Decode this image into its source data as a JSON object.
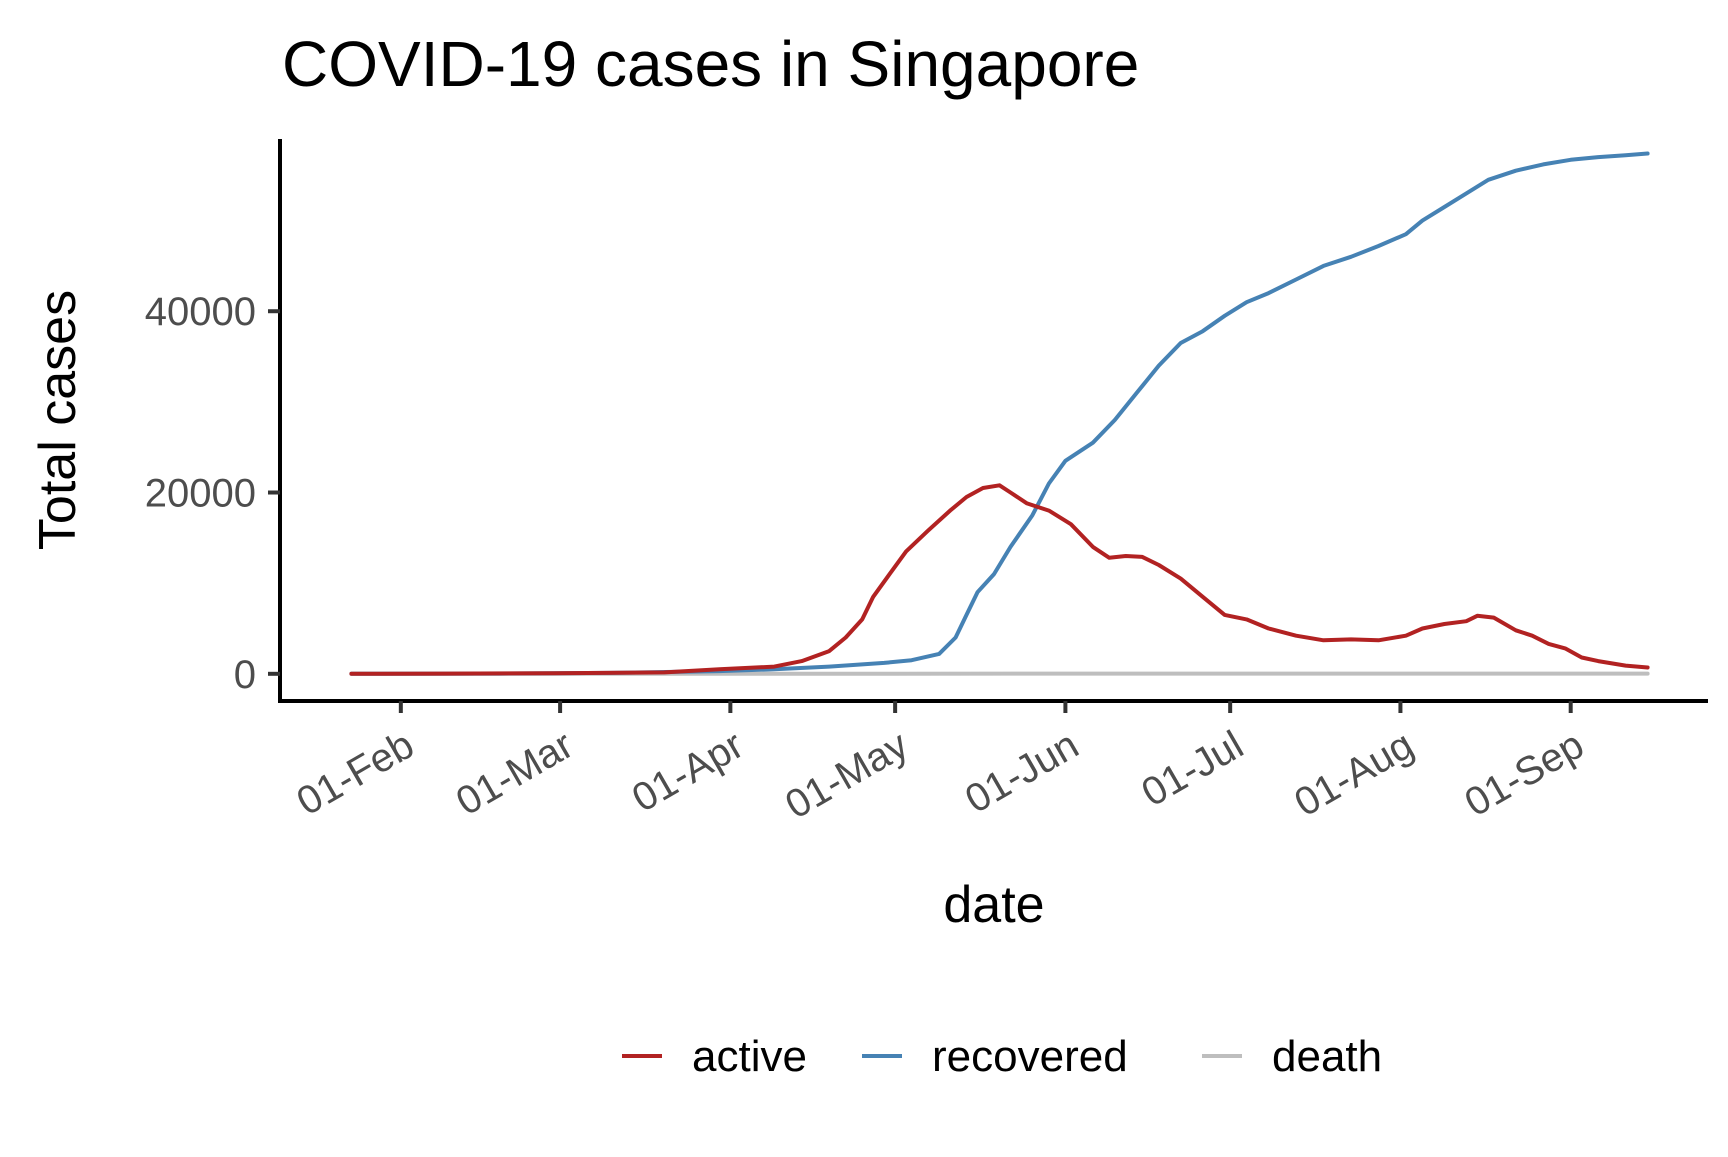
{
  "chart_data": {
    "type": "line",
    "title": "COVID-19 cases in Singapore",
    "xlabel": "date",
    "ylabel": "Total cases",
    "x_start_day": 23,
    "x_end_day": 259,
    "xlim": [
      10,
      270
    ],
    "ylim": [
      -3000,
      59000
    ],
    "x_ticks": [
      {
        "day": 32,
        "label": "01-Feb"
      },
      {
        "day": 61,
        "label": "01-Mar"
      },
      {
        "day": 92,
        "label": "01-Apr"
      },
      {
        "day": 122,
        "label": "01-May"
      },
      {
        "day": 153,
        "label": "01-Jun"
      },
      {
        "day": 183,
        "label": "01-Jul"
      },
      {
        "day": 214,
        "label": "01-Aug"
      },
      {
        "day": 245,
        "label": "01-Sep"
      }
    ],
    "y_ticks": [
      {
        "value": 0,
        "label": "0"
      },
      {
        "value": 20000,
        "label": "20000"
      },
      {
        "value": 40000,
        "label": "40000"
      }
    ],
    "grid": false,
    "legend_position": "bottom",
    "series": [
      {
        "name": "active",
        "label": "active",
        "color": "#B22222",
        "points": [
          [
            23,
            0
          ],
          [
            40,
            20
          ],
          [
            60,
            60
          ],
          [
            80,
            150
          ],
          [
            90,
            500
          ],
          [
            100,
            800
          ],
          [
            105,
            1400
          ],
          [
            110,
            2500
          ],
          [
            113,
            4000
          ],
          [
            116,
            6000
          ],
          [
            118,
            8500
          ],
          [
            121,
            11000
          ],
          [
            124,
            13500
          ],
          [
            128,
            15800
          ],
          [
            132,
            18000
          ],
          [
            135,
            19500
          ],
          [
            138,
            20500
          ],
          [
            141,
            20800
          ],
          [
            143,
            20000
          ],
          [
            146,
            18800
          ],
          [
            150,
            18000
          ],
          [
            154,
            16500
          ],
          [
            158,
            14000
          ],
          [
            161,
            12800
          ],
          [
            164,
            13000
          ],
          [
            167,
            12900
          ],
          [
            170,
            12000
          ],
          [
            174,
            10500
          ],
          [
            178,
            8500
          ],
          [
            182,
            6500
          ],
          [
            186,
            6000
          ],
          [
            190,
            5000
          ],
          [
            195,
            4200
          ],
          [
            200,
            3700
          ],
          [
            205,
            3800
          ],
          [
            210,
            3700
          ],
          [
            215,
            4200
          ],
          [
            218,
            5000
          ],
          [
            222,
            5500
          ],
          [
            226,
            5800
          ],
          [
            228,
            6400
          ],
          [
            231,
            6200
          ],
          [
            235,
            4800
          ],
          [
            238,
            4200
          ],
          [
            241,
            3300
          ],
          [
            244,
            2800
          ],
          [
            247,
            1800
          ],
          [
            250,
            1400
          ],
          [
            255,
            900
          ],
          [
            259,
            700
          ]
        ]
      },
      {
        "name": "recovered",
        "label": "recovered",
        "color": "#4682B4",
        "points": [
          [
            23,
            0
          ],
          [
            50,
            20
          ],
          [
            70,
            100
          ],
          [
            90,
            300
          ],
          [
            100,
            500
          ],
          [
            110,
            800
          ],
          [
            120,
            1200
          ],
          [
            125,
            1500
          ],
          [
            130,
            2200
          ],
          [
            133,
            4000
          ],
          [
            135,
            6500
          ],
          [
            137,
            9000
          ],
          [
            140,
            11000
          ],
          [
            143,
            14000
          ],
          [
            147,
            17500
          ],
          [
            150,
            21000
          ],
          [
            153,
            23500
          ],
          [
            158,
            25500
          ],
          [
            162,
            28000
          ],
          [
            166,
            31000
          ],
          [
            170,
            34000
          ],
          [
            174,
            36500
          ],
          [
            178,
            37800
          ],
          [
            182,
            39500
          ],
          [
            186,
            41000
          ],
          [
            190,
            42000
          ],
          [
            195,
            43500
          ],
          [
            200,
            45000
          ],
          [
            205,
            46000
          ],
          [
            210,
            47200
          ],
          [
            215,
            48500
          ],
          [
            218,
            50000
          ],
          [
            222,
            51500
          ],
          [
            226,
            53000
          ],
          [
            230,
            54500
          ],
          [
            235,
            55500
          ],
          [
            240,
            56200
          ],
          [
            245,
            56700
          ],
          [
            250,
            57000
          ],
          [
            255,
            57200
          ],
          [
            259,
            57400
          ]
        ]
      },
      {
        "name": "death",
        "label": "death",
        "color": "#BEBEBE",
        "points": [
          [
            23,
            0
          ],
          [
            90,
            5
          ],
          [
            120,
            15
          ],
          [
            150,
            23
          ],
          [
            180,
            26
          ],
          [
            210,
            27
          ],
          [
            259,
            27
          ]
        ]
      }
    ]
  }
}
